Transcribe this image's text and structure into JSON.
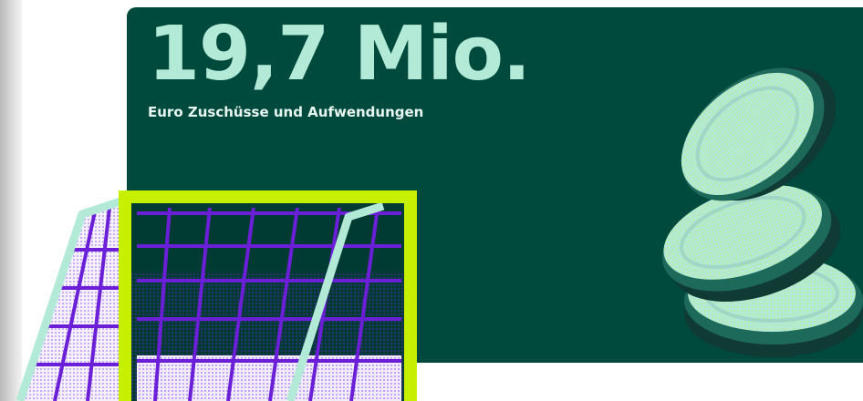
{
  "page": {
    "headline": "19,7 Mio.",
    "subline": "Euro Zuschüsse und Aufwendungen"
  },
  "colors": {
    "panel": "#00493d",
    "headline": "#b3e9d7",
    "goal_frame": "#c7f000",
    "net": "#6b1fd6",
    "coin_light": "#b3e9d7",
    "coin_dark": "#0f3b34"
  },
  "illustrations": {
    "goal": "soccer-goal-illustration",
    "coins": "coin-stack-illustration"
  }
}
